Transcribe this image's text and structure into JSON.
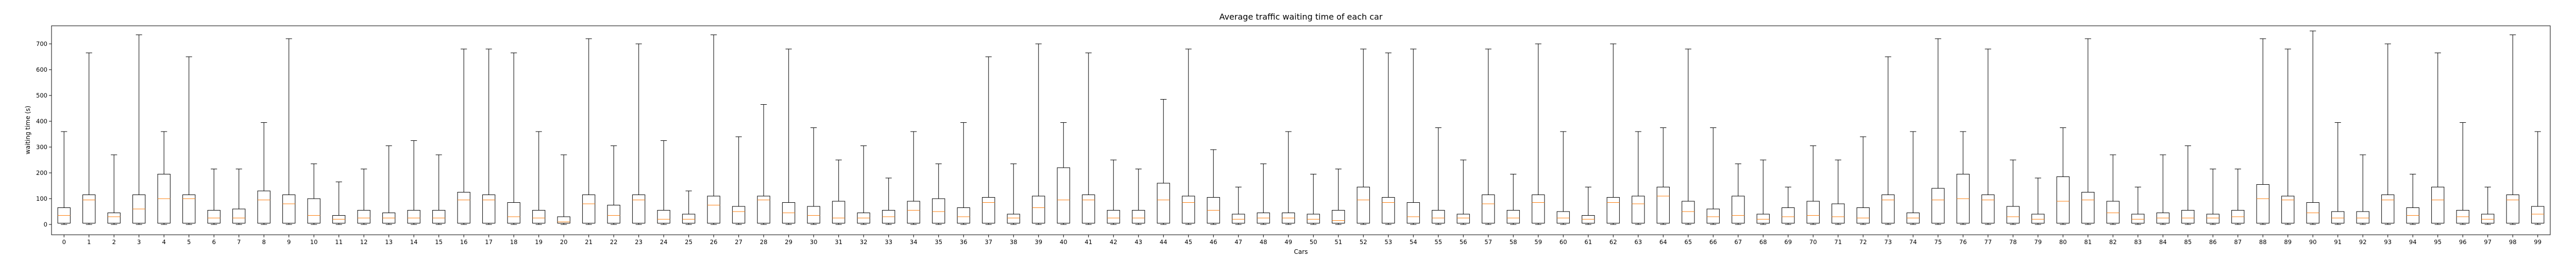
{
  "chart_data": {
    "type": "boxplot",
    "title": "Average traffic waiting time of each car",
    "xlabel": "Cars",
    "ylabel": "waiting time (s)",
    "ylim": [
      -40,
      770
    ],
    "yticks": [
      0,
      100,
      200,
      300,
      400,
      500,
      600,
      700
    ],
    "grid": false,
    "colors": {
      "box": "#000000",
      "median": "#ff7f0e"
    },
    "categories": [
      "0",
      "1",
      "2",
      "3",
      "4",
      "5",
      "6",
      "7",
      "8",
      "9",
      "10",
      "11",
      "12",
      "13",
      "14",
      "15",
      "16",
      "17",
      "18",
      "19",
      "20",
      "21",
      "22",
      "23",
      "24",
      "25",
      "26",
      "27",
      "28",
      "29",
      "30",
      "31",
      "32",
      "33",
      "34",
      "35",
      "36",
      "37",
      "38",
      "39",
      "40",
      "41",
      "42",
      "43",
      "44",
      "45",
      "46",
      "47",
      "48",
      "49",
      "50",
      "51",
      "52",
      "53",
      "54",
      "55",
      "56",
      "57",
      "58",
      "59",
      "60",
      "61",
      "62",
      "63",
      "64",
      "65",
      "66",
      "67",
      "68",
      "69",
      "70",
      "71",
      "72",
      "73",
      "74",
      "75",
      "76",
      "77",
      "78",
      "79",
      "80",
      "81",
      "82",
      "83",
      "84",
      "85",
      "86",
      "87",
      "88",
      "89",
      "90",
      "91",
      "92",
      "93",
      "94",
      "95",
      "96",
      "97",
      "98",
      "99"
    ],
    "boxes": [
      {
        "whislo": 0,
        "q1": 5,
        "med": 35,
        "q3": 65,
        "whishi": 360
      },
      {
        "whislo": 0,
        "q1": 5,
        "med": 95,
        "q3": 115,
        "whishi": 665
      },
      {
        "whislo": 0,
        "q1": 5,
        "med": 30,
        "q3": 45,
        "whishi": 270
      },
      {
        "whislo": 0,
        "q1": 5,
        "med": 60,
        "q3": 115,
        "whishi": 735
      },
      {
        "whislo": 0,
        "q1": 5,
        "med": 100,
        "q3": 195,
        "whishi": 360
      },
      {
        "whislo": 0,
        "q1": 5,
        "med": 100,
        "q3": 115,
        "whishi": 650
      },
      {
        "whislo": 0,
        "q1": 5,
        "med": 25,
        "q3": 55,
        "whishi": 215
      },
      {
        "whislo": 0,
        "q1": 5,
        "med": 25,
        "q3": 60,
        "whishi": 215
      },
      {
        "whislo": 0,
        "q1": 5,
        "med": 95,
        "q3": 130,
        "whishi": 395
      },
      {
        "whislo": 0,
        "q1": 5,
        "med": 80,
        "q3": 115,
        "whishi": 720
      },
      {
        "whislo": 0,
        "q1": 5,
        "med": 35,
        "q3": 100,
        "whishi": 235
      },
      {
        "whislo": 0,
        "q1": 5,
        "med": 20,
        "q3": 35,
        "whishi": 165
      },
      {
        "whislo": 0,
        "q1": 5,
        "med": 25,
        "q3": 55,
        "whishi": 215
      },
      {
        "whislo": 0,
        "q1": 5,
        "med": 25,
        "q3": 45,
        "whishi": 305
      },
      {
        "whislo": 0,
        "q1": 5,
        "med": 25,
        "q3": 55,
        "whishi": 325
      },
      {
        "whislo": 0,
        "q1": 5,
        "med": 25,
        "q3": 55,
        "whishi": 270
      },
      {
        "whislo": 0,
        "q1": 5,
        "med": 95,
        "q3": 125,
        "whishi": 680
      },
      {
        "whislo": 0,
        "q1": 5,
        "med": 95,
        "q3": 115,
        "whishi": 680
      },
      {
        "whislo": 0,
        "q1": 5,
        "med": 30,
        "q3": 85,
        "whishi": 665
      },
      {
        "whislo": 0,
        "q1": 5,
        "med": 25,
        "q3": 55,
        "whishi": 360
      },
      {
        "whislo": 0,
        "q1": 5,
        "med": 10,
        "q3": 30,
        "whishi": 270
      },
      {
        "whislo": 0,
        "q1": 5,
        "med": 80,
        "q3": 115,
        "whishi": 720
      },
      {
        "whislo": 0,
        "q1": 5,
        "med": 35,
        "q3": 75,
        "whishi": 305
      },
      {
        "whislo": 0,
        "q1": 5,
        "med": 95,
        "q3": 115,
        "whishi": 700
      },
      {
        "whislo": 0,
        "q1": 5,
        "med": 20,
        "q3": 55,
        "whishi": 325
      },
      {
        "whislo": 0,
        "q1": 5,
        "med": 20,
        "q3": 40,
        "whishi": 130
      },
      {
        "whislo": 0,
        "q1": 5,
        "med": 75,
        "q3": 110,
        "whishi": 735
      },
      {
        "whislo": 0,
        "q1": 5,
        "med": 50,
        "q3": 70,
        "whishi": 340
      },
      {
        "whislo": 0,
        "q1": 5,
        "med": 95,
        "q3": 110,
        "whishi": 465
      },
      {
        "whislo": 0,
        "q1": 5,
        "med": 45,
        "q3": 85,
        "whishi": 680
      },
      {
        "whislo": 0,
        "q1": 5,
        "med": 35,
        "q3": 70,
        "whishi": 375
      },
      {
        "whislo": 0,
        "q1": 5,
        "med": 25,
        "q3": 90,
        "whishi": 250
      },
      {
        "whislo": 0,
        "q1": 5,
        "med": 25,
        "q3": 45,
        "whishi": 305
      },
      {
        "whislo": 0,
        "q1": 5,
        "med": 30,
        "q3": 55,
        "whishi": 180
      },
      {
        "whislo": 0,
        "q1": 5,
        "med": 55,
        "q3": 90,
        "whishi": 360
      },
      {
        "whislo": 0,
        "q1": 5,
        "med": 50,
        "q3": 100,
        "whishi": 235
      },
      {
        "whislo": 0,
        "q1": 5,
        "med": 30,
        "q3": 65,
        "whishi": 395
      },
      {
        "whislo": 0,
        "q1": 5,
        "med": 85,
        "q3": 105,
        "whishi": 650
      },
      {
        "whislo": 0,
        "q1": 5,
        "med": 25,
        "q3": 40,
        "whishi": 235
      },
      {
        "whislo": 0,
        "q1": 5,
        "med": 65,
        "q3": 110,
        "whishi": 700
      },
      {
        "whislo": 0,
        "q1": 5,
        "med": 95,
        "q3": 220,
        "whishi": 395
      },
      {
        "whislo": 0,
        "q1": 5,
        "med": 95,
        "q3": 115,
        "whishi": 665
      },
      {
        "whislo": 0,
        "q1": 5,
        "med": 25,
        "q3": 55,
        "whishi": 250
      },
      {
        "whislo": 0,
        "q1": 5,
        "med": 25,
        "q3": 55,
        "whishi": 215
      },
      {
        "whislo": 0,
        "q1": 5,
        "med": 95,
        "q3": 160,
        "whishi": 485
      },
      {
        "whislo": 0,
        "q1": 5,
        "med": 85,
        "q3": 110,
        "whishi": 680
      },
      {
        "whislo": 0,
        "q1": 5,
        "med": 55,
        "q3": 105,
        "whishi": 290
      },
      {
        "whislo": 0,
        "q1": 5,
        "med": 20,
        "q3": 40,
        "whishi": 145
      },
      {
        "whislo": 0,
        "q1": 5,
        "med": 25,
        "q3": 45,
        "whishi": 235
      },
      {
        "whislo": 0,
        "q1": 5,
        "med": 25,
        "q3": 45,
        "whishi": 360
      },
      {
        "whislo": 0,
        "q1": 5,
        "med": 20,
        "q3": 40,
        "whishi": 195
      },
      {
        "whislo": 0,
        "q1": 5,
        "med": 15,
        "q3": 55,
        "whishi": 215
      },
      {
        "whislo": 0,
        "q1": 5,
        "med": 95,
        "q3": 145,
        "whishi": 680
      },
      {
        "whislo": 0,
        "q1": 5,
        "med": 85,
        "q3": 105,
        "whishi": 665
      },
      {
        "whislo": 0,
        "q1": 5,
        "med": 30,
        "q3": 85,
        "whishi": 680
      },
      {
        "whislo": 0,
        "q1": 5,
        "med": 25,
        "q3": 55,
        "whishi": 375
      },
      {
        "whislo": 0,
        "q1": 5,
        "med": 25,
        "q3": 40,
        "whishi": 250
      },
      {
        "whislo": 0,
        "q1": 5,
        "med": 80,
        "q3": 115,
        "whishi": 680
      },
      {
        "whislo": 0,
        "q1": 5,
        "med": 25,
        "q3": 55,
        "whishi": 195
      },
      {
        "whislo": 0,
        "q1": 5,
        "med": 85,
        "q3": 115,
        "whishi": 700
      },
      {
        "whislo": 0,
        "q1": 5,
        "med": 25,
        "q3": 50,
        "whishi": 360
      },
      {
        "whislo": 0,
        "q1": 5,
        "med": 20,
        "q3": 35,
        "whishi": 145
      },
      {
        "whislo": 0,
        "q1": 5,
        "med": 85,
        "q3": 105,
        "whishi": 700
      },
      {
        "whislo": 0,
        "q1": 5,
        "med": 80,
        "q3": 110,
        "whishi": 360
      },
      {
        "whislo": 0,
        "q1": 5,
        "med": 110,
        "q3": 145,
        "whishi": 375
      },
      {
        "whislo": 0,
        "q1": 5,
        "med": 50,
        "q3": 90,
        "whishi": 680
      },
      {
        "whislo": 0,
        "q1": 5,
        "med": 30,
        "q3": 60,
        "whishi": 375
      },
      {
        "whislo": 0,
        "q1": 5,
        "med": 35,
        "q3": 110,
        "whishi": 235
      },
      {
        "whislo": 0,
        "q1": 5,
        "med": 20,
        "q3": 40,
        "whishi": 250
      },
      {
        "whislo": 0,
        "q1": 5,
        "med": 30,
        "q3": 65,
        "whishi": 145
      },
      {
        "whislo": 0,
        "q1": 5,
        "med": 35,
        "q3": 90,
        "whishi": 305
      },
      {
        "whislo": 0,
        "q1": 5,
        "med": 30,
        "q3": 80,
        "whishi": 250
      },
      {
        "whislo": 0,
        "q1": 5,
        "med": 25,
        "q3": 65,
        "whishi": 340
      },
      {
        "whislo": 0,
        "q1": 5,
        "med": 95,
        "q3": 115,
        "whishi": 650
      },
      {
        "whislo": 0,
        "q1": 5,
        "med": 25,
        "q3": 45,
        "whishi": 360
      },
      {
        "whislo": 0,
        "q1": 5,
        "med": 95,
        "q3": 140,
        "whishi": 720
      },
      {
        "whislo": 0,
        "q1": 5,
        "med": 100,
        "q3": 195,
        "whishi": 360
      },
      {
        "whislo": 0,
        "q1": 5,
        "med": 95,
        "q3": 115,
        "whishi": 680
      },
      {
        "whislo": 0,
        "q1": 5,
        "med": 30,
        "q3": 70,
        "whishi": 250
      },
      {
        "whislo": 0,
        "q1": 5,
        "med": 20,
        "q3": 40,
        "whishi": 180
      },
      {
        "whislo": 0,
        "q1": 5,
        "med": 90,
        "q3": 185,
        "whishi": 375
      },
      {
        "whislo": 0,
        "q1": 5,
        "med": 95,
        "q3": 125,
        "whishi": 720
      },
      {
        "whislo": 0,
        "q1": 5,
        "med": 45,
        "q3": 90,
        "whishi": 270
      },
      {
        "whislo": 0,
        "q1": 5,
        "med": 20,
        "q3": 40,
        "whishi": 145
      },
      {
        "whislo": 0,
        "q1": 5,
        "med": 25,
        "q3": 45,
        "whishi": 270
      },
      {
        "whislo": 0,
        "q1": 5,
        "med": 25,
        "q3": 55,
        "whishi": 305
      },
      {
        "whislo": 0,
        "q1": 5,
        "med": 25,
        "q3": 40,
        "whishi": 215
      },
      {
        "whislo": 0,
        "q1": 5,
        "med": 30,
        "q3": 55,
        "whishi": 215
      },
      {
        "whislo": 0,
        "q1": 5,
        "med": 100,
        "q3": 155,
        "whishi": 720
      },
      {
        "whislo": 0,
        "q1": 5,
        "med": 95,
        "q3": 110,
        "whishi": 680
      },
      {
        "whislo": 0,
        "q1": 5,
        "med": 45,
        "q3": 85,
        "whishi": 750
      },
      {
        "whislo": 0,
        "q1": 5,
        "med": 25,
        "q3": 50,
        "whishi": 395
      },
      {
        "whislo": 0,
        "q1": 5,
        "med": 25,
        "q3": 50,
        "whishi": 270
      },
      {
        "whislo": 0,
        "q1": 5,
        "med": 95,
        "q3": 115,
        "whishi": 700
      },
      {
        "whislo": 0,
        "q1": 5,
        "med": 35,
        "q3": 65,
        "whishi": 195
      },
      {
        "whislo": 0,
        "q1": 5,
        "med": 95,
        "q3": 145,
        "whishi": 665
      },
      {
        "whislo": 0,
        "q1": 5,
        "med": 30,
        "q3": 55,
        "whishi": 395
      },
      {
        "whislo": 0,
        "q1": 5,
        "med": 20,
        "q3": 40,
        "whishi": 145
      },
      {
        "whislo": 0,
        "q1": 5,
        "med": 95,
        "q3": 115,
        "whishi": 735
      },
      {
        "whislo": 0,
        "q1": 5,
        "med": 40,
        "q3": 70,
        "whishi": 360
      }
    ]
  }
}
